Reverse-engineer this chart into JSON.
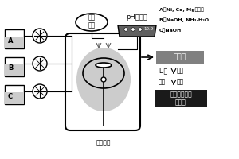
{
  "bg_color": "#ffffff",
  "labels": {
    "mechanical_stir": "机械\n搅拌",
    "ph_detector": "pH检测器",
    "ph_value": "10.9",
    "water_bath": "水浴加热",
    "precursor": "前驱体",
    "li_salt": "Li盐",
    "mix_powder": "混粉",
    "oxygen": "氧气",
    "calcine": "煅烧",
    "product": "镍钴镁三元正\n极材料",
    "A_text": "A：Ni, Co, Mg盐溶液",
    "B_text": "B：NaOH, NH₃·H₂O",
    "C_text": "C：NaOH"
  },
  "colors": {
    "white": "#ffffff",
    "black": "#000000",
    "gray_dark": "#606060",
    "precursor_box": "#808080",
    "product_box": "#1a1a1a",
    "product_text": "#ffffff",
    "reactor_fill": "#cccccc"
  }
}
